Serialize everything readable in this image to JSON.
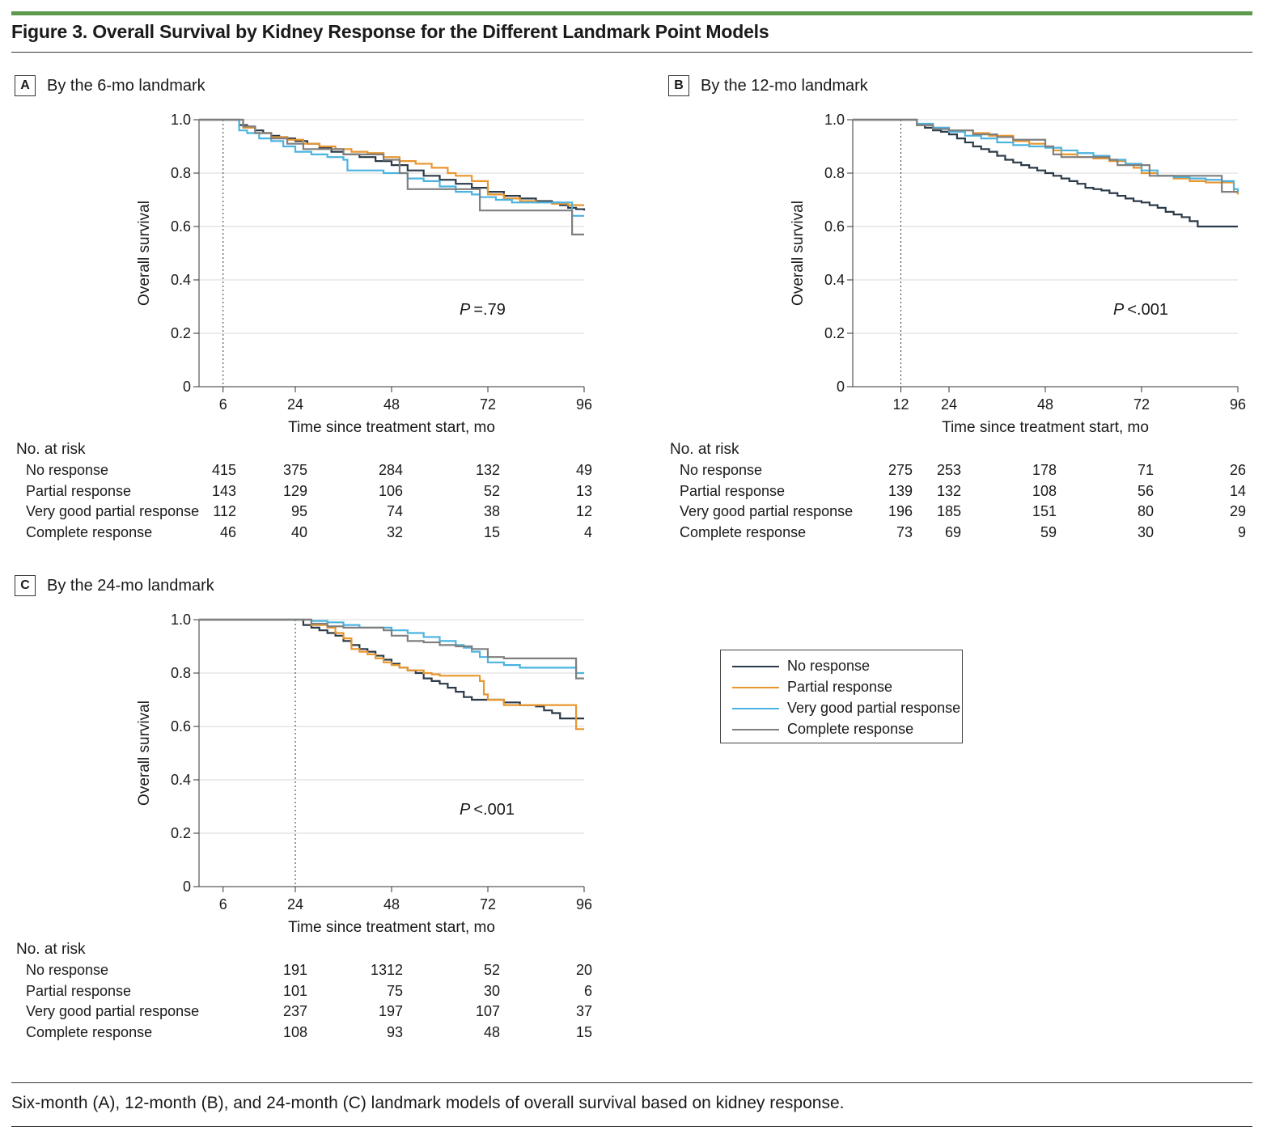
{
  "figure": {
    "title": "Figure 3. Overall Survival by Kidney Response for the Different Landmark Point Models",
    "caption": "Six-month (A), 12-month (B), and 24-month (C) landmark models of overall survival based on kidney response."
  },
  "colors": {
    "accent_bar": "#5c9a4a",
    "no_response": "#2b3a48",
    "partial_response": "#e8962e",
    "very_good_partial_response": "#4bb3e0",
    "complete_response": "#7f7f7f"
  },
  "legend": {
    "items": [
      {
        "label": "No response",
        "color": "#2b3a48"
      },
      {
        "label": "Partial response",
        "color": "#e8962e"
      },
      {
        "label": "Very good partial response",
        "color": "#4bb3e0"
      },
      {
        "label": "Complete response",
        "color": "#7f7f7f"
      }
    ]
  },
  "panels": [
    {
      "letter": "A",
      "label": "By the 6-mo landmark",
      "p_italic": "P",
      "p_value": "=.79",
      "risk_header": "No. at risk",
      "risk_rows": [
        {
          "name": "No response",
          "values": [
            "415",
            "375",
            "284",
            "132",
            "49"
          ]
        },
        {
          "name": "Partial response",
          "values": [
            "143",
            "129",
            "106",
            "52",
            "13"
          ]
        },
        {
          "name": "Very good partial response",
          "values": [
            "112",
            "95",
            "74",
            "38",
            "12"
          ]
        },
        {
          "name": "Complete response",
          "values": [
            "46",
            "40",
            "32",
            "15",
            "4"
          ]
        }
      ]
    },
    {
      "letter": "B",
      "label": "By the 12-mo landmark",
      "p_italic": "P",
      "p_value": "<.001",
      "risk_header": "No. at risk",
      "risk_rows": [
        {
          "name": "No response",
          "values": [
            "275",
            "253",
            "178",
            "71",
            "26"
          ]
        },
        {
          "name": "Partial response",
          "values": [
            "139",
            "132",
            "108",
            "56",
            "14"
          ]
        },
        {
          "name": "Very good partial response",
          "values": [
            "196",
            "185",
            "151",
            "80",
            "29"
          ]
        },
        {
          "name": "Complete response",
          "values": [
            "73",
            "69",
            "59",
            "30",
            "9"
          ]
        }
      ]
    },
    {
      "letter": "C",
      "label": "By the 24-mo landmark",
      "p_italic": "P",
      "p_value": "<.001",
      "risk_header": "No. at risk",
      "risk_rows": [
        {
          "name": "No response",
          "values": [
            "191",
            "1312",
            "52",
            "20"
          ]
        },
        {
          "name": "Partial response",
          "values": [
            "101",
            "75",
            "30",
            "6"
          ]
        },
        {
          "name": "Very good partial response",
          "values": [
            "237",
            "197",
            "107",
            "37"
          ]
        },
        {
          "name": "Complete response",
          "values": [
            "108",
            "93",
            "48",
            "15"
          ]
        }
      ]
    }
  ],
  "chart_data": [
    {
      "type": "line",
      "title": "By the 6-mo landmark",
      "xlabel": "Time since treatment start, mo",
      "ylabel": "Overall survival",
      "xlim": [
        0,
        96
      ],
      "ylim": [
        0,
        1.0
      ],
      "xticks": [
        6,
        24,
        48,
        72,
        96
      ],
      "yticks": [
        0,
        0.2,
        0.4,
        0.6,
        0.8,
        1.0
      ],
      "ytick_labels": [
        "0",
        "0.2",
        "0.4",
        "0.6",
        "0.8",
        "1.0"
      ],
      "landmark": 6,
      "grid": true,
      "series": [
        {
          "name": "No response",
          "color": "#2b3a48",
          "x": [
            0,
            9,
            10,
            12,
            14,
            16,
            18,
            20,
            22,
            24,
            27,
            30,
            33,
            36,
            40,
            44,
            48,
            52,
            56,
            60,
            64,
            68,
            72,
            76,
            80,
            84,
            88,
            90,
            92,
            94,
            96
          ],
          "y": [
            1.0,
            1.0,
            0.98,
            0.97,
            0.96,
            0.95,
            0.94,
            0.935,
            0.93,
            0.92,
            0.91,
            0.895,
            0.88,
            0.87,
            0.86,
            0.845,
            0.83,
            0.81,
            0.79,
            0.775,
            0.76,
            0.745,
            0.73,
            0.715,
            0.705,
            0.695,
            0.69,
            0.68,
            0.67,
            0.665,
            0.66
          ]
        },
        {
          "name": "Partial response",
          "color": "#e8962e",
          "x": [
            0,
            9,
            11,
            14,
            18,
            22,
            26,
            30,
            34,
            38,
            42,
            46,
            50,
            54,
            58,
            62,
            64,
            68,
            72,
            76,
            80,
            84,
            88,
            92,
            96
          ],
          "y": [
            1.0,
            1.0,
            0.97,
            0.95,
            0.935,
            0.925,
            0.91,
            0.9,
            0.89,
            0.88,
            0.875,
            0.86,
            0.845,
            0.835,
            0.82,
            0.8,
            0.79,
            0.77,
            0.72,
            0.705,
            0.695,
            0.69,
            0.685,
            0.68,
            0.68
          ]
        },
        {
          "name": "Very good partial response",
          "color": "#4bb3e0",
          "x": [
            0,
            8,
            10,
            12,
            15,
            18,
            21,
            24,
            28,
            32,
            36,
            37,
            42,
            46,
            52,
            56,
            60,
            64,
            68,
            70,
            74,
            78,
            84,
            88,
            92,
            93,
            96
          ],
          "y": [
            1.0,
            1.0,
            0.96,
            0.95,
            0.93,
            0.92,
            0.9,
            0.88,
            0.87,
            0.86,
            0.85,
            0.81,
            0.81,
            0.8,
            0.78,
            0.77,
            0.75,
            0.73,
            0.72,
            0.71,
            0.7,
            0.69,
            0.69,
            0.69,
            0.69,
            0.64,
            0.64
          ]
        },
        {
          "name": "Complete response",
          "color": "#7f7f7f",
          "x": [
            0,
            9,
            11,
            14,
            18,
            22,
            26,
            30,
            36,
            42,
            46,
            50,
            52,
            56,
            64,
            68,
            70,
            78,
            86,
            92,
            93,
            96
          ],
          "y": [
            1.0,
            1.0,
            0.975,
            0.95,
            0.93,
            0.91,
            0.89,
            0.89,
            0.87,
            0.87,
            0.85,
            0.8,
            0.74,
            0.74,
            0.74,
            0.74,
            0.66,
            0.66,
            0.66,
            0.66,
            0.57,
            0.57
          ]
        }
      ]
    },
    {
      "type": "line",
      "title": "By the 12-mo landmark",
      "xlabel": "Time since treatment start, mo",
      "ylabel": "Overall survival",
      "xlim": [
        0,
        96
      ],
      "ylim": [
        0,
        1.0
      ],
      "xticks": [
        12,
        24,
        48,
        72,
        96
      ],
      "yticks": [
        0,
        0.2,
        0.4,
        0.6,
        0.8,
        1.0
      ],
      "ytick_labels": [
        "0",
        "0.2",
        "0.4",
        "0.6",
        "0.8",
        "1.0"
      ],
      "landmark": 12,
      "grid": true,
      "series": [
        {
          "name": "No response",
          "color": "#2b3a48",
          "x": [
            0,
            14,
            16,
            18,
            20,
            22,
            24,
            26,
            28,
            30,
            32,
            34,
            36,
            38,
            40,
            42,
            44,
            46,
            48,
            50,
            52,
            54,
            56,
            58,
            60,
            62,
            64,
            66,
            68,
            70,
            72,
            74,
            76,
            78,
            80,
            82,
            84,
            86,
            96
          ],
          "y": [
            1.0,
            1.0,
            0.98,
            0.97,
            0.96,
            0.955,
            0.945,
            0.93,
            0.915,
            0.9,
            0.89,
            0.88,
            0.865,
            0.85,
            0.84,
            0.83,
            0.82,
            0.81,
            0.8,
            0.79,
            0.78,
            0.77,
            0.76,
            0.745,
            0.74,
            0.735,
            0.725,
            0.715,
            0.705,
            0.695,
            0.69,
            0.68,
            0.67,
            0.655,
            0.645,
            0.635,
            0.62,
            0.6,
            0.6
          ]
        },
        {
          "name": "Partial response",
          "color": "#e8962e",
          "x": [
            0,
            14,
            16,
            20,
            24,
            30,
            34,
            40,
            44,
            48,
            50,
            52,
            56,
            60,
            64,
            68,
            70,
            72,
            76,
            80,
            84,
            88,
            92,
            95,
            96
          ],
          "y": [
            1.0,
            1.0,
            0.98,
            0.97,
            0.96,
            0.95,
            0.94,
            0.92,
            0.91,
            0.9,
            0.885,
            0.87,
            0.86,
            0.855,
            0.845,
            0.835,
            0.82,
            0.8,
            0.79,
            0.78,
            0.77,
            0.765,
            0.765,
            0.73,
            0.72
          ]
        },
        {
          "name": "Very good partial response",
          "color": "#4bb3e0",
          "x": [
            0,
            14,
            16,
            20,
            24,
            28,
            32,
            36,
            40,
            44,
            48,
            52,
            56,
            60,
            64,
            68,
            72,
            76,
            80,
            84,
            88,
            92,
            95,
            96
          ],
          "y": [
            1.0,
            1.0,
            0.985,
            0.97,
            0.955,
            0.94,
            0.93,
            0.915,
            0.905,
            0.9,
            0.895,
            0.885,
            0.875,
            0.865,
            0.85,
            0.835,
            0.81,
            0.79,
            0.785,
            0.78,
            0.775,
            0.77,
            0.74,
            0.73
          ]
        },
        {
          "name": "Complete response",
          "color": "#7f7f7f",
          "x": [
            0,
            14,
            16,
            20,
            24,
            30,
            36,
            40,
            44,
            48,
            50,
            52,
            56,
            60,
            64,
            66,
            70,
            74,
            80,
            86,
            90,
            92,
            96
          ],
          "y": [
            1.0,
            1.0,
            0.98,
            0.965,
            0.96,
            0.945,
            0.935,
            0.925,
            0.925,
            0.9,
            0.87,
            0.86,
            0.86,
            0.86,
            0.85,
            0.83,
            0.83,
            0.79,
            0.79,
            0.79,
            0.79,
            0.73,
            0.73
          ]
        }
      ]
    },
    {
      "type": "line",
      "title": "By the 24-mo landmark",
      "xlabel": "Time since treatment start, mo",
      "ylabel": "Overall survival",
      "xlim": [
        0,
        96
      ],
      "ylim": [
        0,
        1.0
      ],
      "xticks": [
        6,
        24,
        48,
        72,
        96
      ],
      "yticks": [
        0,
        0.2,
        0.4,
        0.6,
        0.8,
        1.0
      ],
      "ytick_labels": [
        "0",
        "0.2",
        "0.4",
        "0.6",
        "0.8",
        "1.0"
      ],
      "landmark": 24,
      "grid": true,
      "series": [
        {
          "name": "No response",
          "color": "#2b3a48",
          "x": [
            0,
            25,
            26,
            28,
            30,
            32,
            34,
            36,
            38,
            40,
            42,
            44,
            46,
            48,
            50,
            52,
            54,
            56,
            58,
            60,
            62,
            64,
            66,
            68,
            70,
            72,
            74,
            76,
            80,
            84,
            86,
            88,
            90,
            92,
            94,
            96
          ],
          "y": [
            1.0,
            1.0,
            0.98,
            0.97,
            0.96,
            0.95,
            0.94,
            0.92,
            0.905,
            0.89,
            0.88,
            0.865,
            0.85,
            0.835,
            0.82,
            0.81,
            0.8,
            0.78,
            0.77,
            0.76,
            0.745,
            0.73,
            0.71,
            0.7,
            0.7,
            0.7,
            0.7,
            0.69,
            0.68,
            0.675,
            0.66,
            0.65,
            0.63,
            0.63,
            0.63,
            0.63
          ]
        },
        {
          "name": "Partial response",
          "color": "#e8962e",
          "x": [
            0,
            25,
            28,
            32,
            34,
            36,
            38,
            40,
            42,
            44,
            46,
            48,
            50,
            52,
            54,
            56,
            58,
            60,
            62,
            66,
            70,
            71,
            72,
            76,
            80,
            84,
            88,
            92,
            94,
            96
          ],
          "y": [
            1.0,
            1.0,
            0.98,
            0.97,
            0.95,
            0.93,
            0.89,
            0.88,
            0.87,
            0.855,
            0.84,
            0.83,
            0.82,
            0.81,
            0.81,
            0.8,
            0.795,
            0.79,
            0.79,
            0.79,
            0.77,
            0.72,
            0.7,
            0.68,
            0.68,
            0.68,
            0.68,
            0.68,
            0.59,
            0.59
          ]
        },
        {
          "name": "Very good partial response",
          "color": "#4bb3e0",
          "x": [
            0,
            26,
            28,
            32,
            36,
            40,
            44,
            48,
            52,
            56,
            60,
            64,
            66,
            68,
            70,
            72,
            76,
            80,
            84,
            88,
            92,
            94,
            96
          ],
          "y": [
            1.0,
            1.0,
            0.995,
            0.99,
            0.98,
            0.97,
            0.97,
            0.96,
            0.95,
            0.935,
            0.92,
            0.905,
            0.895,
            0.88,
            0.86,
            0.84,
            0.83,
            0.82,
            0.82,
            0.82,
            0.82,
            0.8,
            0.8
          ]
        },
        {
          "name": "Complete response",
          "color": "#7f7f7f",
          "x": [
            0,
            26,
            28,
            32,
            36,
            40,
            44,
            46,
            48,
            52,
            56,
            60,
            64,
            68,
            72,
            76,
            80,
            84,
            88,
            92,
            94,
            96
          ],
          "y": [
            1.0,
            1.0,
            0.985,
            0.975,
            0.97,
            0.97,
            0.97,
            0.96,
            0.94,
            0.92,
            0.915,
            0.905,
            0.9,
            0.89,
            0.86,
            0.855,
            0.855,
            0.855,
            0.855,
            0.855,
            0.78,
            0.78
          ]
        }
      ]
    }
  ]
}
